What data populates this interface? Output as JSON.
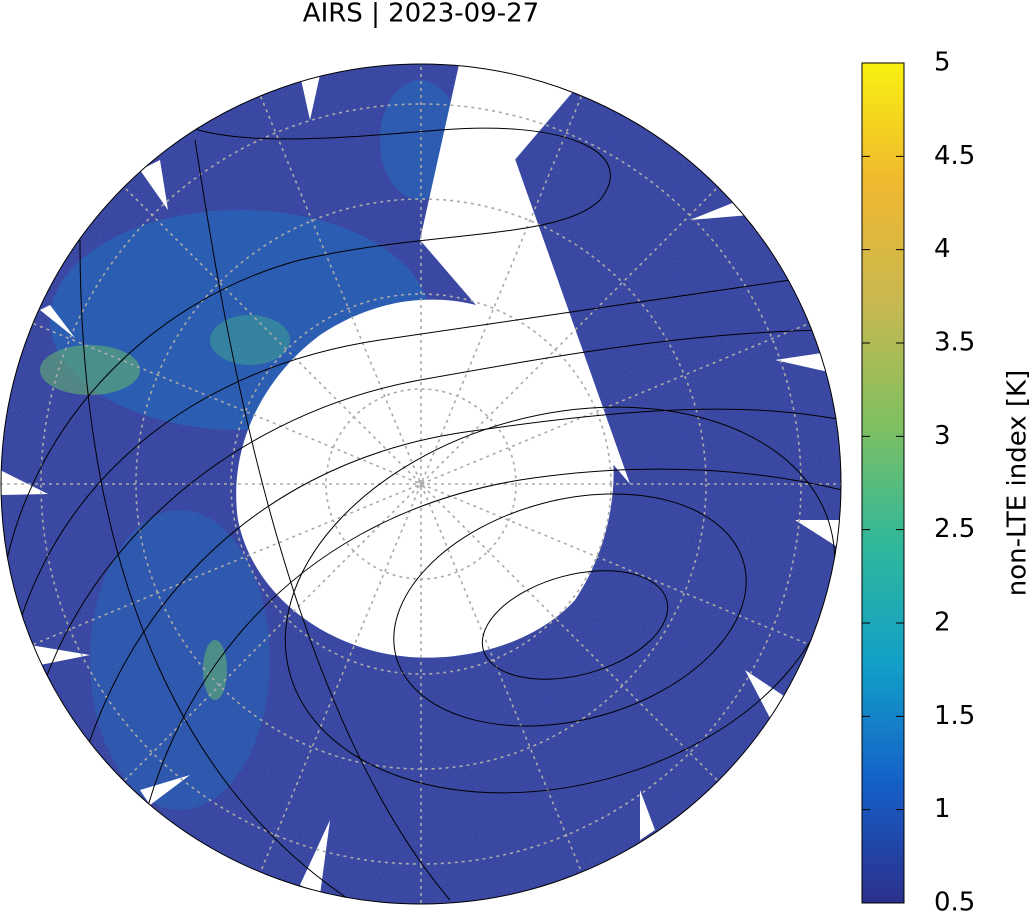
{
  "title": "AIRS | 2023-09-27",
  "colorbar": {
    "label": "non-LTE index [K]",
    "range": [
      0.5,
      5
    ],
    "ticks": [
      0.5,
      1,
      1.5,
      2,
      2.5,
      3,
      3.5,
      4,
      4.5,
      5
    ],
    "colors": [
      "#2c2f8c",
      "#1560c8",
      "#12a0c8",
      "#30b89a",
      "#80c060",
      "#c8b850",
      "#f0b830",
      "#f8f010"
    ]
  }
}
